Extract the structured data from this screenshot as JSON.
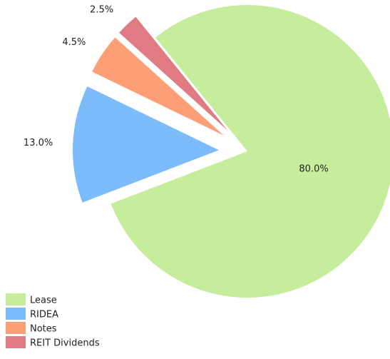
{
  "chart_data": {
    "type": "pie",
    "categories": [
      "Lease",
      "RIDEA",
      "Notes",
      "REIT Dividends"
    ],
    "values": [
      80,
      13,
      4.5,
      2.5
    ],
    "value_labels": [
      "80.0%",
      "13.0%",
      "4.5%",
      "2.5%"
    ],
    "colors": [
      "#c6ed9b",
      "#7dbcfb",
      "#fc9f77",
      "#e07b84"
    ],
    "legend": "bottom-left"
  }
}
